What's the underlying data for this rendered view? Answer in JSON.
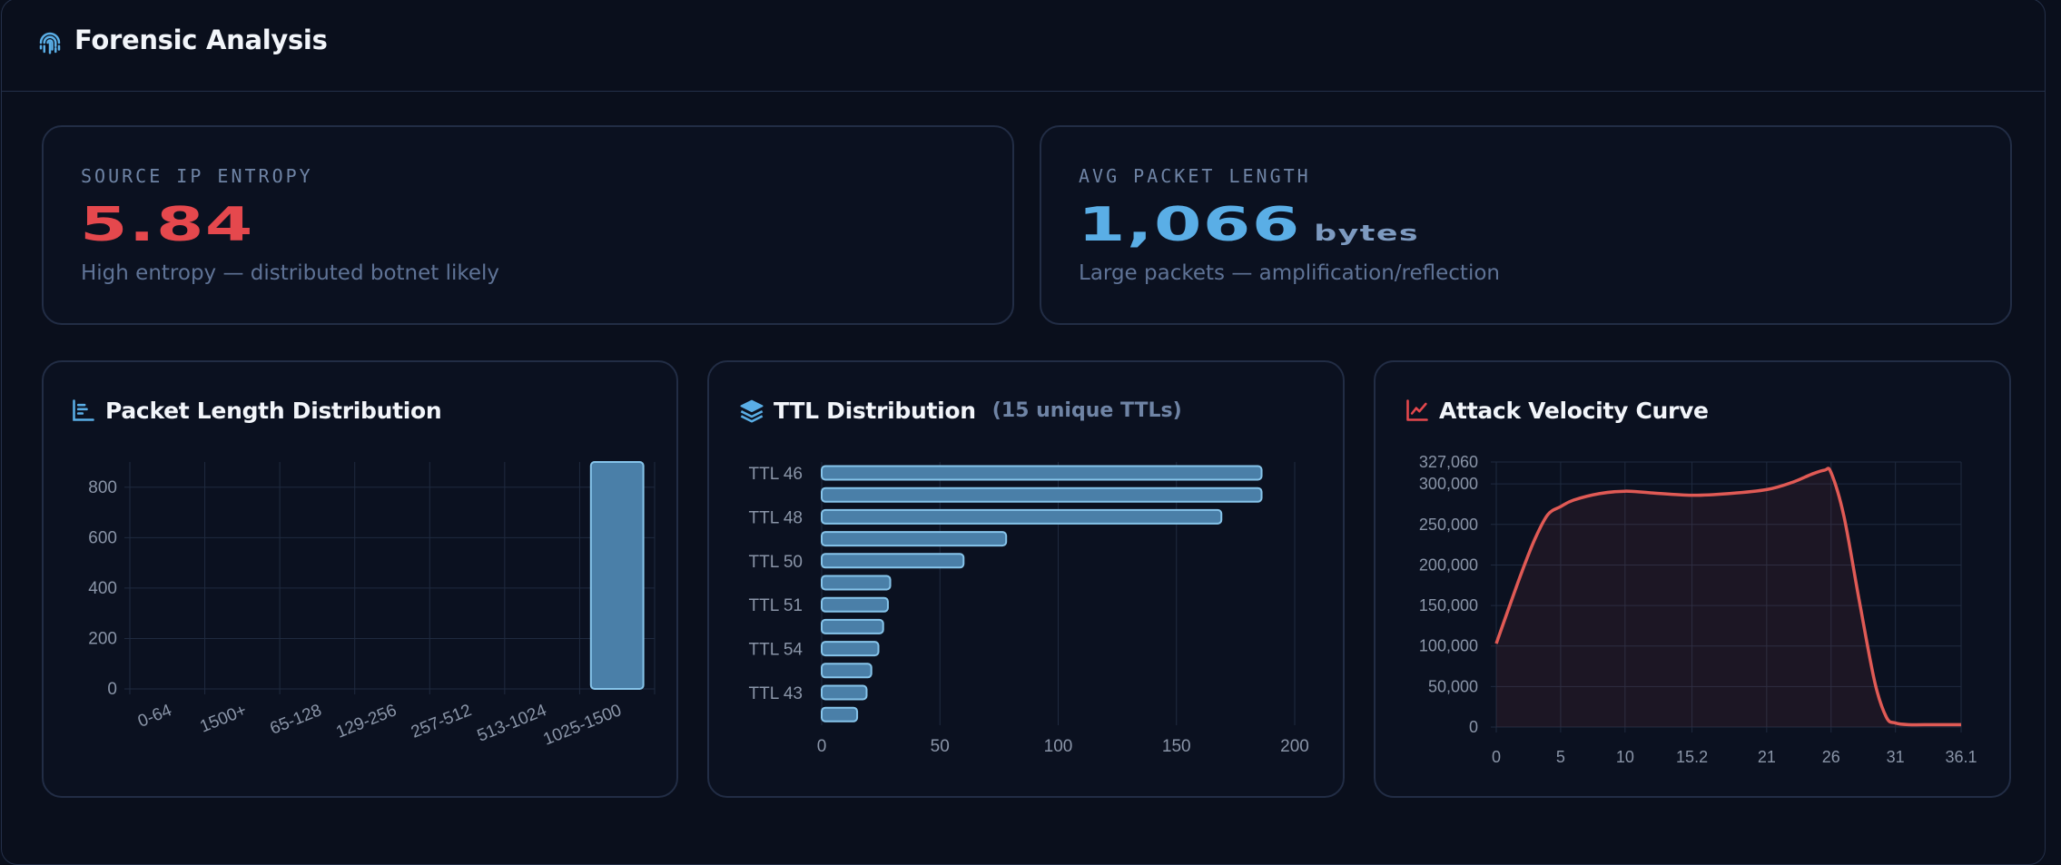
{
  "header": {
    "title": "Forensic Analysis",
    "icon": "fingerprint-icon"
  },
  "kpis": {
    "entropy": {
      "label": "SOURCE IP ENTROPY",
      "value": "5.84",
      "description": "High entropy — distributed botnet likely",
      "color": "#e5484d"
    },
    "packet_length": {
      "label": "AVG PACKET LENGTH",
      "value": "1,066",
      "unit": "bytes",
      "description": "Large packets — amplification/reflection",
      "color": "#5aaee6"
    }
  },
  "panels": {
    "packet_length": {
      "title": "Packet Length Distribution",
      "icon": "chart-bar-icon"
    },
    "ttl": {
      "title": "TTL Distribution",
      "subtitle": "(15 unique TTLs)",
      "icon": "layers-icon"
    },
    "velocity": {
      "title": "Attack Velocity Curve",
      "icon": "chart-line-icon"
    }
  },
  "chart_data": [
    {
      "id": "packet_length",
      "type": "bar",
      "categories": [
        "0-64",
        "1500+",
        "65-128",
        "129-256",
        "257-512",
        "513-1024",
        "1025-1500"
      ],
      "values": [
        0,
        0,
        0,
        0,
        0,
        0,
        900
      ],
      "ylim": [
        0,
        900
      ],
      "yticks": [
        0,
        200,
        400,
        600,
        800
      ],
      "grid": true,
      "color": "#4a7fa8"
    },
    {
      "id": "ttl",
      "type": "bar",
      "orientation": "horizontal",
      "categories": [
        "TTL 46",
        "",
        "TTL 48",
        "",
        "TTL 50",
        "",
        "TTL 51",
        "",
        "TTL 54",
        "",
        "TTL 43",
        ""
      ],
      "values": [
        186,
        186,
        169,
        78,
        60,
        29,
        28,
        26,
        24,
        21,
        19,
        15
      ],
      "xlim": [
        0,
        200
      ],
      "xticks": [
        0,
        50,
        100,
        150,
        200
      ],
      "grid": true,
      "color": "#4a7fa8"
    },
    {
      "id": "velocity",
      "type": "area",
      "x": [
        0,
        1,
        2,
        3,
        4,
        5,
        6,
        8,
        10,
        12,
        15.2,
        18,
        21,
        23,
        24.5,
        25.5,
        26,
        27,
        28.2,
        29.4,
        30.3,
        31,
        32,
        34,
        36.1
      ],
      "y": [
        103000,
        148000,
        192000,
        232000,
        262000,
        272000,
        280000,
        288000,
        291000,
        289000,
        286000,
        288000,
        293000,
        302000,
        312000,
        317000,
        314000,
        260000,
        155000,
        55000,
        12000,
        5000,
        3000,
        3000,
        3000
      ],
      "xticks": [
        "0",
        "5",
        "10",
        "15.2",
        "21",
        "26",
        "31",
        "36.1"
      ],
      "xtick_values": [
        0,
        5,
        10,
        15.2,
        21,
        26,
        31,
        36.1
      ],
      "yticks": [
        "0",
        "50,000",
        "100,000",
        "150,000",
        "200,000",
        "250,000",
        "300,000",
        "327,060"
      ],
      "ytick_values": [
        0,
        50000,
        100000,
        150000,
        200000,
        250000,
        300000,
        327060
      ],
      "ylim": [
        0,
        327060
      ],
      "xlim": [
        0,
        36.1
      ],
      "grid": true,
      "color": "#e05a55"
    }
  ]
}
